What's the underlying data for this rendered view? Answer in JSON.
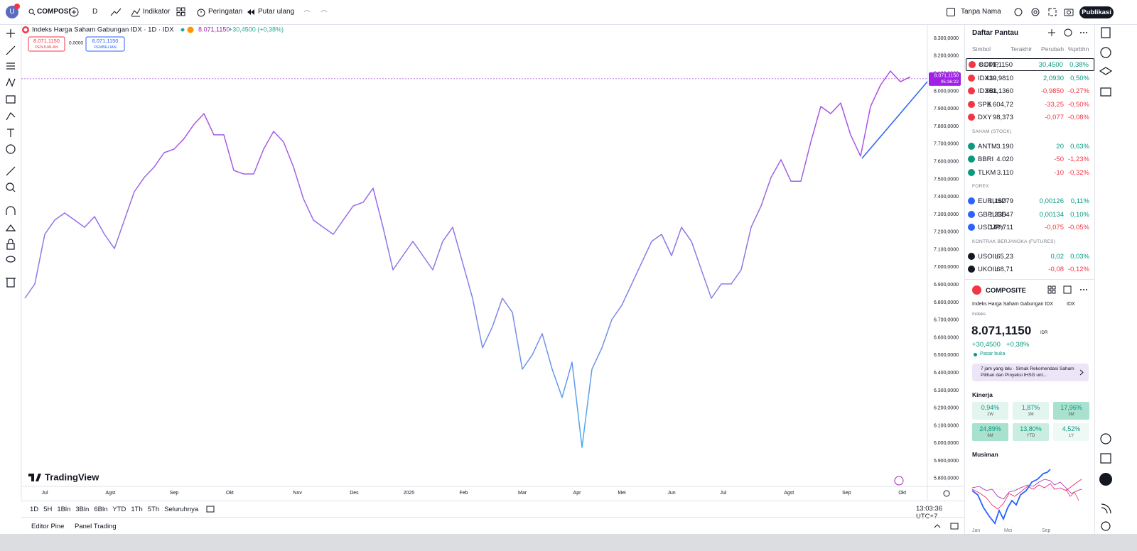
{
  "toolbar": {
    "avatar": "U",
    "symbol": "COMPOSI",
    "interval": "D",
    "indicators": "Indikator",
    "alerts": "Peringatan",
    "replay": "Putar ulang",
    "layout_name": "Tanpa Nama",
    "publish": "Publikasi"
  },
  "chart_data": {
    "type": "line",
    "title": "Indeks Harga Saham Gabungan IDX · 1D · IDX",
    "last_price": "8.071,1150",
    "change": "+30,4500 (+0,38%)",
    "sell_price": "8.071,1150",
    "sell_label": "PENJUALAN",
    "spread": "0,0000",
    "buy_price": "8.071,1150",
    "buy_label": "PEMBELIAN",
    "price_tag": "8.071,1150",
    "countdown": "05:36:22",
    "last_value": 8071.115,
    "watermark": "TradingView",
    "values": [
      6824,
      6905,
      7187,
      7268,
      7308,
      7268,
      7227,
      7288,
      7187,
      7106,
      7268,
      7429,
      7510,
      7570,
      7651,
      7671,
      7731,
      7812,
      7873,
      7752,
      7752,
      7550,
      7530,
      7530,
      7671,
      7772,
      7712,
      7570,
      7389,
      7268,
      7227,
      7187,
      7268,
      7348,
      7369,
      7449,
      7227,
      6985,
      7066,
      7147,
      7066,
      6985,
      7147,
      7227,
      7026,
      6824,
      6542,
      6663,
      6824,
      6744,
      6421,
      6502,
      6623,
      6421,
      6260,
      6461,
      5977,
      6421,
      6542,
      6703,
      6784,
      6905,
      7026,
      7147,
      7187,
      7066,
      7227,
      7147,
      6985,
      6824,
      6905,
      6905,
      6985,
      7227,
      7348,
      7510,
      7611,
      7489,
      7489,
      7712,
      7913,
      7873,
      7933,
      7752,
      7631,
      7913,
      8034,
      8115,
      8054,
      8082
    ],
    "xlim": [
      -0.36,
      90.5
    ],
    "xticks": [
      {
        "value": 2,
        "label": "Jul"
      },
      {
        "value": 8.6,
        "label": "Agst"
      },
      {
        "value": 15,
        "label": "Sep"
      },
      {
        "value": 20.6,
        "label": "Okt"
      },
      {
        "value": 27.4,
        "label": "Nov"
      },
      {
        "value": 33.1,
        "label": "Des"
      },
      {
        "value": 38.6,
        "label": "2025"
      },
      {
        "value": 44.1,
        "label": "Feb"
      },
      {
        "value": 50,
        "label": "Mar"
      },
      {
        "value": 55.5,
        "label": "Apr"
      },
      {
        "value": 60,
        "label": "Mei"
      },
      {
        "value": 65,
        "label": "Jun"
      },
      {
        "value": 70.2,
        "label": "Jul"
      },
      {
        "value": 76.8,
        "label": "Agst"
      },
      {
        "value": 82.6,
        "label": "Sep"
      },
      {
        "value": 88.2,
        "label": "Okt"
      }
    ],
    "ylim": [
      5735,
      8377
    ],
    "yticks": [
      {
        "value": 5800,
        "label": "5.800,0000"
      },
      {
        "value": 5900,
        "label": "5.900,0000"
      },
      {
        "value": 6000,
        "label": "6.000,0000"
      },
      {
        "value": 6100,
        "label": "6.100,0000"
      },
      {
        "value": 6200,
        "label": "6.200,0000"
      },
      {
        "value": 6300,
        "label": "6.300,0000"
      },
      {
        "value": 6400,
        "label": "6.400,0000"
      },
      {
        "value": 6500,
        "label": "6.500,0000"
      },
      {
        "value": 6600,
        "label": "6.600,0000"
      },
      {
        "value": 6700,
        "label": "6.700,0000"
      },
      {
        "value": 6800,
        "label": "6.800,0000"
      },
      {
        "value": 6900,
        "label": "6.900,0000"
      },
      {
        "value": 7000,
        "label": "7.000,0000"
      },
      {
        "value": 7100,
        "label": "7.100,0000"
      },
      {
        "value": 7200,
        "label": "7.200,0000"
      },
      {
        "value": 7300,
        "label": "7.300,0000"
      },
      {
        "value": 7400,
        "label": "7.400,0000"
      },
      {
        "value": 7500,
        "label": "7.500,0000"
      },
      {
        "value": 7600,
        "label": "7.600,0000"
      },
      {
        "value": 7700,
        "label": "7.700,0000"
      },
      {
        "value": 7800,
        "label": "7.800,0000"
      },
      {
        "value": 7900,
        "label": "7.900,0000"
      },
      {
        "value": 8000,
        "label": "8.000,0000"
      },
      {
        "value": 8100,
        "label": "8.100,0000"
      },
      {
        "value": 8200,
        "label": "8.200,0000"
      },
      {
        "value": 8300,
        "label": "8.300,0000"
      }
    ],
    "grid": false
  },
  "bottom_bar": {
    "ranges": [
      "1D",
      "5H",
      "1Bln",
      "3Bln",
      "6Bln",
      "YTD",
      "1Th",
      "5Th",
      "Seluruhnya"
    ],
    "clock": "13:03:36 UTC+7",
    "tabs": [
      "Editor Pine",
      "Panel Trading"
    ]
  },
  "watchlist": {
    "title": "Daftar Pantau",
    "columns": [
      "Simbol",
      "Terakhir",
      "Perubah",
      "%prbhn"
    ],
    "sections": [
      {
        "rows": [
          {
            "symbol": "COMP",
            "last": "8.071,1150",
            "change": "30,4500",
            "percent": "0,38%"
          },
          {
            "symbol": "IDX30",
            "last": "419,9810",
            "change": "2,0930",
            "percent": "0,50%"
          },
          {
            "symbol": "IDXBL",
            "last": "363,1360",
            "change": "-0,9850",
            "percent": "-0,27%"
          },
          {
            "symbol": "SPX",
            "last": "6.604,72",
            "change": "-33,25",
            "percent": "-0,50%"
          },
          {
            "symbol": "DXY",
            "last": "98,373",
            "change": "-0,077",
            "percent": "-0,08%"
          }
        ]
      },
      {
        "title": "SAHAM (STOCK)",
        "rows": [
          {
            "symbol": "ANTM",
            "last": "3.190",
            "change": "20",
            "percent": "0,63%"
          },
          {
            "symbol": "BBRI",
            "last": "4.020",
            "change": "-50",
            "percent": "-1,23%"
          },
          {
            "symbol": "TLKM",
            "last": "3.110",
            "change": "-10",
            "percent": "-0,32%"
          }
        ]
      },
      {
        "title": "FOREX",
        "rows": [
          {
            "symbol": "EURUSD",
            "last": "1,16779",
            "change": "0,00126",
            "percent": "0,11%"
          },
          {
            "symbol": "GBPUSD",
            "last": "1,33547",
            "change": "0,00134",
            "percent": "0,10%"
          },
          {
            "symbol": "USDJPY",
            "last": "149,711",
            "change": "-0,075",
            "percent": "-0,05%"
          }
        ]
      },
      {
        "title": "KONTRAK BERJANGKA (FUTURES)",
        "rows": [
          {
            "symbol": "USOIL",
            "last": "65,23",
            "change": "0,02",
            "percent": "0,03%"
          },
          {
            "symbol": "UKOIL",
            "last": "68,71",
            "change": "-0,08",
            "percent": "-0,12%"
          }
        ]
      }
    ]
  },
  "details": {
    "symbol": "COMPOSITE",
    "name": "Indeks Harga Saham Gabungan IDX",
    "exchange": "IDX",
    "kind": "Indeks",
    "price": "8.071,1150",
    "currency": "IDR",
    "change": "+30,4500",
    "change_percent": "+0,38%",
    "market_status": "Pasar buka",
    "news": "7 jam yang lalu · Simak Rekomendasi Saham Pilihan dan Proyeksi IHSG unt...",
    "performance_title": "Kinerja",
    "performance": [
      {
        "value": "0,94%",
        "label": "1W",
        "color": "#e3f5ef"
      },
      {
        "value": "1,87%",
        "label": "1M",
        "color": "#e3f5ef"
      },
      {
        "value": "17,96%",
        "label": "3M",
        "color": "#a8e2cf"
      },
      {
        "value": "24,89%",
        "label": "6M",
        "color": "#a8e2cf"
      },
      {
        "value": "13,80%",
        "label": "YTD",
        "color": "#c9eee1"
      },
      {
        "value": "4,52%",
        "label": "1Y",
        "color": "#eef9f5"
      }
    ],
    "seasonal_title": "Musiman",
    "seasonal_months": [
      "Jan",
      "Mei",
      "Sep"
    ]
  }
}
